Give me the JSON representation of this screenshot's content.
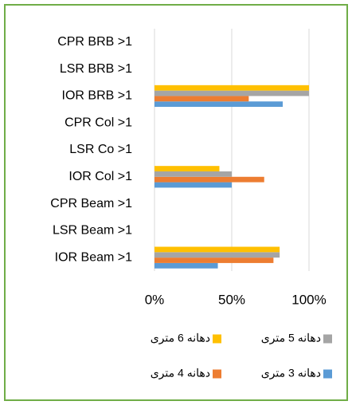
{
  "chart_data": {
    "type": "bar",
    "orientation": "horizontal",
    "categories": [
      "CPR BRB >1",
      "LSR BRB >1",
      "IOR BRB >1",
      "CPR Col >1",
      "LSR Co >1",
      "IOR Col >1",
      "CPR Beam >1",
      "LSR Beam >1",
      "IOR Beam >1"
    ],
    "series": [
      {
        "name": "دهانه 3 متری",
        "color": "#5b9bd5",
        "values": [
          0,
          0,
          83,
          0,
          0,
          50,
          0,
          0,
          41
        ]
      },
      {
        "name": "دهانه 4 متری",
        "color": "#ed7d31",
        "values": [
          0,
          0,
          61,
          0,
          0,
          71,
          0,
          0,
          77
        ]
      },
      {
        "name": "دهانه 5 متری",
        "color": "#a5a5a5",
        "values": [
          0,
          0,
          100,
          0,
          0,
          50,
          0,
          0,
          81
        ]
      },
      {
        "name": "دهانه 6 متری",
        "color": "#ffc000",
        "values": [
          0,
          0,
          100,
          0,
          0,
          42,
          0,
          0,
          81
        ]
      }
    ],
    "xlim": [
      0,
      100
    ],
    "xticks": [
      {
        "value": 0,
        "label": "0%"
      },
      {
        "value": 50,
        "label": "50%"
      },
      {
        "value": 100,
        "label": "100%"
      }
    ],
    "grid": true,
    "legend": "bottom"
  }
}
